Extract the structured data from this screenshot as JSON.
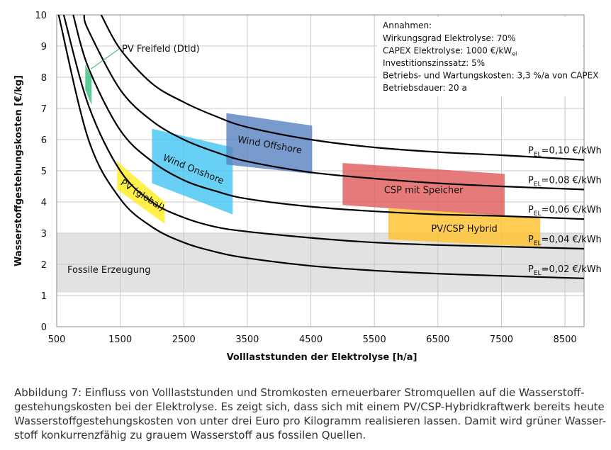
{
  "chart_data": {
    "type": "line",
    "xlabel": "Volllaststunden  der Elektrolyse [h/a]",
    "ylabel": "Wasserstoffgestehungskosten  [€/kg]",
    "xlim": [
      500,
      8800
    ],
    "ylim": [
      0,
      10
    ],
    "xticks": [
      500,
      1500,
      2500,
      3500,
      4500,
      5500,
      6500,
      7500,
      8500
    ],
    "yticks": [
      0,
      1,
      2,
      3,
      4,
      5,
      6,
      7,
      8,
      9,
      10
    ],
    "grid": true,
    "series": [
      {
        "name": {
          "p": "P",
          "sub": "EL",
          "rest": "=0,10 €/kWh"
        },
        "color": "#000000",
        "x": [
          1200,
          1500,
          2000,
          2500,
          3000,
          3500,
          4500,
          5500,
          6500,
          7500,
          8800
        ],
        "values": [
          10,
          8.9,
          7.8,
          7.2,
          6.75,
          6.4,
          6.0,
          5.75,
          5.6,
          5.5,
          5.35
        ]
      },
      {
        "name": {
          "p": "P",
          "sub": "EL",
          "rest": "=0,08 €/kWh"
        },
        "color": "#000000",
        "x": [
          930,
          1000,
          1500,
          2000,
          2500,
          3000,
          3500,
          4500,
          5500,
          6500,
          7500,
          8800
        ],
        "values": [
          10,
          9.5,
          7.6,
          6.6,
          6.0,
          5.6,
          5.3,
          4.95,
          4.75,
          4.6,
          4.5,
          4.4
        ]
      },
      {
        "name": {
          "p": "P",
          "sub": "EL",
          "rest": "=0,06 €/kWh"
        },
        "color": "#000000",
        "x": [
          760,
          1000,
          1500,
          2000,
          2500,
          3000,
          3500,
          4500,
          5500,
          6500,
          7500,
          8800
        ],
        "values": [
          10,
          8.3,
          6.3,
          5.3,
          4.7,
          4.35,
          4.1,
          3.85,
          3.7,
          3.6,
          3.55,
          3.45
        ]
      },
      {
        "name": {
          "p": "P",
          "sub": "EL",
          "rest": "=0,04 €/kWh"
        },
        "color": "#000000",
        "x": [
          610,
          1000,
          1500,
          2000,
          2500,
          3000,
          3500,
          4500,
          5500,
          6500,
          7500,
          8800
        ],
        "values": [
          10,
          7.1,
          5.0,
          4.0,
          3.5,
          3.2,
          3.05,
          2.85,
          2.7,
          2.62,
          2.57,
          2.5
        ]
      },
      {
        "name": {
          "p": "P",
          "sub": "EL",
          "rest": "=0,02 €/kWh"
        },
        "color": "#000000",
        "x": [
          530,
          1000,
          1500,
          2000,
          2500,
          3000,
          3500,
          4500,
          5500,
          6500,
          7500,
          8800
        ],
        "values": [
          10,
          6.0,
          4.1,
          3.2,
          2.7,
          2.4,
          2.2,
          1.95,
          1.8,
          1.7,
          1.63,
          1.55
        ]
      }
    ],
    "regions": [
      {
        "name": "Fossile Erzeugung",
        "color": "#e2e2e2",
        "text_color": "#222222",
        "points": [
          [
            500,
            3.0
          ],
          [
            8800,
            3.0
          ],
          [
            8800,
            1.1
          ],
          [
            500,
            1.1
          ]
        ]
      },
      {
        "name": "PV Freifeld (Dtld)",
        "color": "#3cbf7c",
        "text_color": "#2eaa5e",
        "points": [
          [
            950,
            8.4
          ],
          [
            1050,
            8.0
          ],
          [
            1050,
            7.1
          ],
          [
            950,
            7.6
          ]
        ]
      },
      {
        "name": "PV (global)",
        "color": "#ffee22",
        "text_color": "#e0901a",
        "points": [
          [
            1450,
            5.3
          ],
          [
            2200,
            4.0
          ],
          [
            2200,
            3.3
          ],
          [
            1450,
            4.4
          ]
        ]
      },
      {
        "name": "Wind Onshore",
        "color": "#45c6f2",
        "text_color": "#1b6ea8",
        "points": [
          [
            2000,
            6.35
          ],
          [
            3270,
            5.75
          ],
          [
            3270,
            3.6
          ],
          [
            2000,
            4.6
          ]
        ]
      },
      {
        "name": "Wind Offshore",
        "color": "#5a84c2",
        "text_color": "#1f3c7a",
        "points": [
          [
            3170,
            6.85
          ],
          [
            4520,
            6.45
          ],
          [
            4520,
            4.9
          ],
          [
            3170,
            5.2
          ]
        ]
      },
      {
        "name": "CSP mit Speicher",
        "color": "#e05c5c",
        "text_color": "#9a0010",
        "points": [
          [
            5000,
            5.25
          ],
          [
            7550,
            4.9
          ],
          [
            7550,
            3.55
          ],
          [
            5000,
            3.9
          ]
        ]
      },
      {
        "name": "PV/CSP Hybrid",
        "color": "#ffc12e",
        "text_color": "#222222",
        "points": [
          [
            5720,
            3.8
          ],
          [
            8110,
            3.5
          ],
          [
            8110,
            2.55
          ],
          [
            5720,
            2.8
          ]
        ]
      }
    ],
    "assumptions": {
      "title": "Annahmen:",
      "lines": [
        {
          "text": "Wirkungsgrad Elektrolyse: 70%"
        },
        {
          "text": "CAPEX Elektrolyse: 1000 €/kW",
          "sub": "el"
        },
        {
          "text": "Investitionszinssatz: 5%"
        },
        {
          "text": "Betriebs- und Wartungskosten: 3,3 %/a von CAPEX"
        },
        {
          "text": "Betriebsdauer: 20 a"
        }
      ]
    }
  },
  "caption": [
    "Abbildung 7: Einfluss von Volllaststunden und Stromkosten erneuerbarer Stromquellen auf die Wasserstoff-",
    "gestehungskosten bei der Elektrolyse. Es zeigt sich, dass sich mit einem PV/CSP-Hybridkraftwerk bereits heute",
    "Wasserstoffgestehungskosten von unter drei Euro pro Kilogramm realisieren lassen. Damit wird grüner Wasser-",
    "stoff konkurrenzfähig zu grauem Wasserstoff aus fossilen Quellen."
  ]
}
